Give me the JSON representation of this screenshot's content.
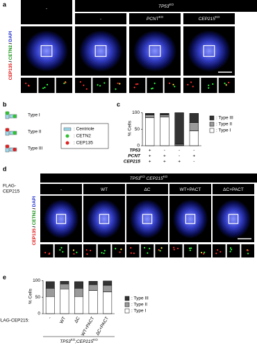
{
  "panel_a": {
    "label": "a",
    "header": [
      "TP53",
      "KO"
    ],
    "columns": [
      [
        "-"
      ],
      [
        "-"
      ],
      [
        "PCNT",
        "KO"
      ],
      [
        "CEP215",
        "KO"
      ]
    ],
    "stain": [
      "CEP135",
      "/",
      "CETN2",
      "/",
      "DAPI"
    ]
  },
  "panel_b": {
    "label": "b",
    "types": [
      "Type I",
      "Type II",
      "Type III"
    ],
    "legend": [
      ": Centriole",
      ": CETN2",
      ": CEP135"
    ]
  },
  "panel_d": {
    "label": "d",
    "header": [
      "TP53",
      "KO",
      " CEP215",
      "KO"
    ],
    "row_label": [
      "FLAG-",
      "CEP215"
    ],
    "columns": [
      [
        "-"
      ],
      [
        "WT"
      ],
      [
        "ΔC"
      ],
      [
        "WT+PACT"
      ],
      [
        "ΔC+PACT"
      ]
    ],
    "stain": [
      "CEP135",
      "/",
      "CETN2",
      "/",
      "DAPI"
    ]
  },
  "chart_data": [
    {
      "type": "bar",
      "stacked": true,
      "label": "c",
      "ylabel": "% Cells",
      "ylim": [
        0,
        105
      ],
      "yticks": [
        0,
        50,
        100
      ],
      "conditions": [
        {
          "name": "TP53",
          "values": [
            "+",
            "-",
            "-",
            "-"
          ]
        },
        {
          "name": "PCNT",
          "values": [
            "+",
            "+",
            "-",
            "+"
          ]
        },
        {
          "name": "CEP215",
          "values": [
            "+",
            "+",
            "+",
            "-"
          ]
        }
      ],
      "series": [
        {
          "name": ": Type I",
          "color": "#ffffff",
          "values": [
            85,
            87,
            2,
            45
          ]
        },
        {
          "name": ": Type II",
          "color": "#9a9a9a",
          "values": [
            8,
            6,
            3,
            25
          ]
        },
        {
          "name": ": Type III",
          "color": "#333333",
          "values": [
            5,
            5,
            95,
            28
          ]
        }
      ]
    },
    {
      "type": "bar",
      "stacked": true,
      "label": "e",
      "ylabel": "% Cells",
      "xlabel": "FLAG-CEP215:",
      "categories": [
        "-",
        "WT",
        "ΔC",
        "WT+PACT",
        "ΔC+PACT"
      ],
      "footer": [
        "TP53",
        "KO",
        ";CEP215",
        "KO"
      ],
      "ylim": [
        0,
        105
      ],
      "yticks": [
        0,
        50,
        100
      ],
      "series": [
        {
          "name": ": Type I",
          "color": "#ffffff",
          "values": [
            52,
            75,
            52,
            70,
            66
          ]
        },
        {
          "name": ": Type II",
          "color": "#9a9a9a",
          "values": [
            25,
            15,
            25,
            18,
            20
          ]
        },
        {
          "name": ": Type III",
          "color": "#333333",
          "values": [
            20,
            8,
            20,
            10,
            13
          ]
        }
      ]
    }
  ]
}
